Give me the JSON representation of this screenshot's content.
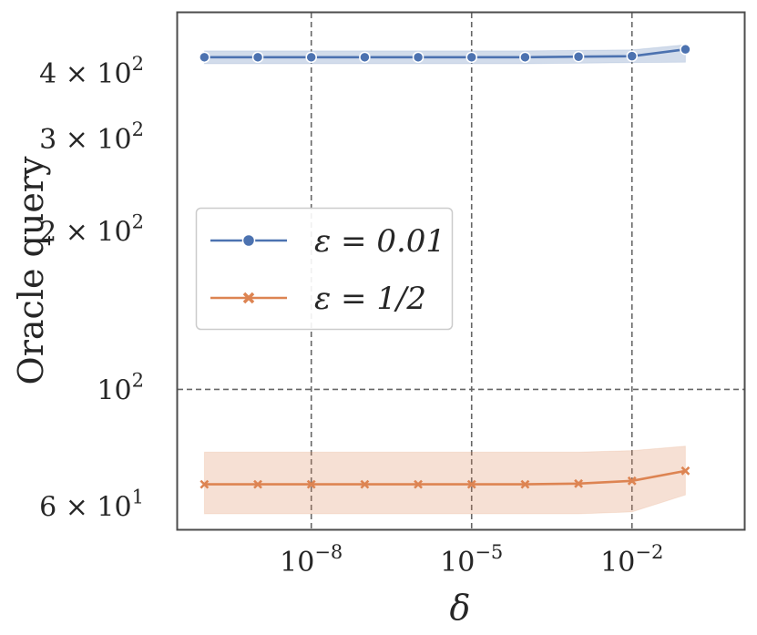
{
  "chart_data": {
    "type": "line",
    "xlabel": "δ",
    "ylabel": "Oracle query",
    "x_scale": "log",
    "y_scale": "log",
    "xlim": [
      3.16e-11,
      1.26
    ],
    "ylim": [
      54.2,
      520
    ],
    "grid": true,
    "legend_position": "center-left",
    "x_ticks": [
      {
        "value": 1e-08,
        "label": "10",
        "exp": "−8"
      },
      {
        "value": 1e-05,
        "label": "10",
        "exp": "−5"
      },
      {
        "value": 0.01,
        "label": "10",
        "exp": "−2"
      }
    ],
    "y_ticks": [
      {
        "value": 400,
        "label": "4 × 10",
        "exp": "2"
      },
      {
        "value": 300,
        "label": "3 × 10",
        "exp": "2"
      },
      {
        "value": 200,
        "label": "2 × 10",
        "exp": "2"
      },
      {
        "value": 100,
        "label": "10",
        "exp": "2"
      },
      {
        "value": 60,
        "label": "6 × 10",
        "exp": "1"
      }
    ],
    "x": [
      1e-10,
      1e-09,
      1e-08,
      1e-07,
      1e-06,
      1e-05,
      0.0001,
      0.001,
      0.01,
      0.1
    ],
    "series": [
      {
        "name": "ε = 0.01",
        "color": "#4c72b0",
        "marker": "circle",
        "values": [
          428,
          428,
          428,
          428,
          428,
          428,
          428,
          429,
          430,
          443
        ],
        "band_low": [
          416,
          416,
          416,
          416,
          416,
          416,
          416,
          417,
          418,
          419
        ],
        "band_high": [
          440,
          440,
          440,
          440,
          440,
          440,
          440,
          441,
          442,
          452
        ]
      },
      {
        "name": "ε = 1/2",
        "color": "#dd8452",
        "marker": "x",
        "values": [
          66,
          66,
          66,
          66,
          66,
          66,
          66,
          66.2,
          67,
          70
        ],
        "band_low": [
          58,
          58,
          58,
          58,
          58,
          58,
          58,
          58,
          58.5,
          63
        ],
        "band_high": [
          76,
          76,
          76,
          76,
          76,
          76,
          76,
          76,
          76.5,
          78
        ]
      }
    ]
  }
}
